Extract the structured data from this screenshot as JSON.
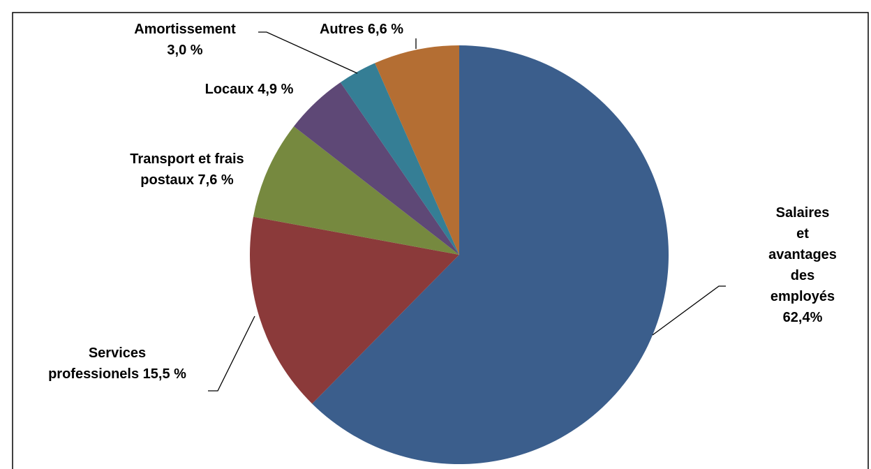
{
  "chart_data": {
    "type": "pie",
    "categories": [
      "Salaires et\navantages des\nemployés",
      "Services\nprofessionels",
      "Transport et frais\npostaux",
      "Locaux",
      "Amortissement",
      "Autres"
    ],
    "values": [
      62.4,
      15.5,
      7.6,
      4.9,
      3.0,
      6.6
    ],
    "value_labels": [
      "62,4%",
      "15,5 %",
      "7,6 %",
      "4,9 %",
      "3,0 %",
      "6,6 %"
    ],
    "colors": [
      "#3b5e8c",
      "#8b3a3a",
      "#76893f",
      "#5e4876",
      "#357e95",
      "#b46e33"
    ]
  }
}
